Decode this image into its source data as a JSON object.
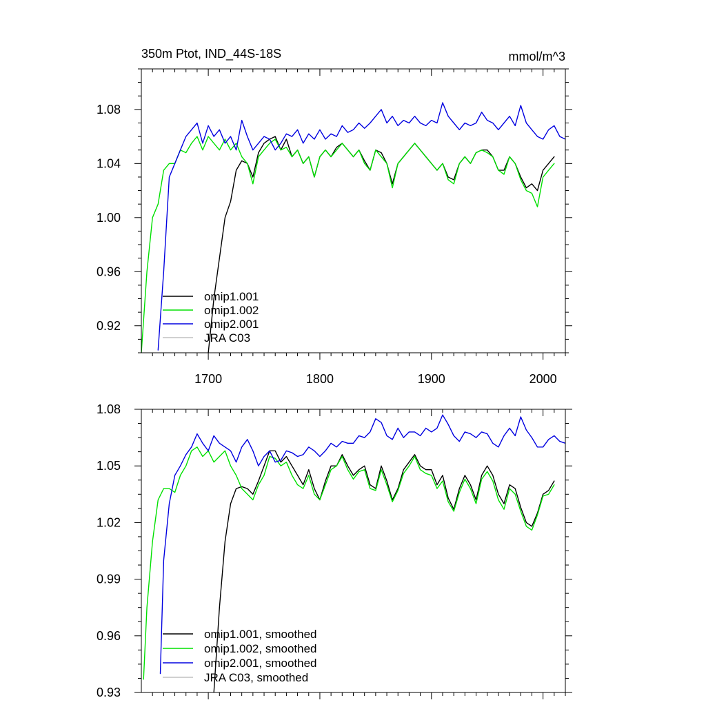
{
  "chart_data": [
    {
      "type": "line",
      "title": "350m Ptot, IND_44S-18S",
      "units": "mmol/m^3",
      "xlim": [
        1640,
        2020
      ],
      "ylim": [
        0.9,
        1.11
      ],
      "x_ticks": [
        1700,
        1800,
        1900,
        2000
      ],
      "x_tick_labels": [
        "1700",
        "1800",
        "1900",
        "2000"
      ],
      "y_ticks": [
        0.92,
        0.96,
        1.0,
        1.04,
        1.08
      ],
      "y_tick_labels": [
        "0.92",
        "0.96",
        "1.00",
        "1.04",
        "1.08"
      ],
      "grid": false,
      "legend_position": "bottom-left",
      "series": [
        {
          "name": "omip1.001",
          "color": "#000000",
          "x": [
            1700,
            1705,
            1710,
            1715,
            1720,
            1725,
            1730,
            1735,
            1740,
            1745,
            1750,
            1755,
            1760,
            1765,
            1770,
            1775,
            1780,
            1785,
            1790,
            1795,
            1800,
            1805,
            1810,
            1815,
            1820,
            1825,
            1830,
            1835,
            1840,
            1845,
            1850,
            1855,
            1860,
            1865,
            1870,
            1875,
            1880,
            1885,
            1890,
            1895,
            1900,
            1905,
            1910,
            1915,
            1920,
            1925,
            1930,
            1935,
            1940,
            1945,
            1950,
            1955,
            1960,
            1965,
            1970,
            1975,
            1980,
            1985,
            1990,
            1995,
            2000,
            2005,
            2010
          ],
          "y": [
            0.9,
            0.94,
            0.97,
            1.0,
            1.012,
            1.035,
            1.042,
            1.04,
            1.03,
            1.048,
            1.055,
            1.058,
            1.06,
            1.05,
            1.058,
            1.045,
            1.05,
            1.04,
            1.045,
            1.03,
            1.045,
            1.05,
            1.045,
            1.052,
            1.055,
            1.05,
            1.045,
            1.05,
            1.042,
            1.035,
            1.05,
            1.048,
            1.04,
            1.025,
            1.04,
            1.045,
            1.05,
            1.055,
            1.05,
            1.045,
            1.04,
            1.035,
            1.04,
            1.03,
            1.028,
            1.04,
            1.045,
            1.04,
            1.048,
            1.05,
            1.05,
            1.045,
            1.035,
            1.035,
            1.045,
            1.04,
            1.03,
            1.022,
            1.025,
            1.02,
            1.035,
            1.04,
            1.045
          ]
        },
        {
          "name": "omip1.002",
          "color": "#00e000",
          "x": [
            1640,
            1645,
            1650,
            1655,
            1660,
            1665,
            1670,
            1675,
            1680,
            1685,
            1690,
            1695,
            1700,
            1705,
            1710,
            1715,
            1720,
            1725,
            1730,
            1735,
            1740,
            1745,
            1750,
            1755,
            1760,
            1765,
            1770,
            1775,
            1780,
            1785,
            1790,
            1795,
            1800,
            1805,
            1810,
            1815,
            1820,
            1825,
            1830,
            1835,
            1840,
            1845,
            1850,
            1855,
            1860,
            1865,
            1870,
            1875,
            1880,
            1885,
            1890,
            1895,
            1900,
            1905,
            1910,
            1915,
            1920,
            1925,
            1930,
            1935,
            1940,
            1945,
            1950,
            1955,
            1960,
            1965,
            1970,
            1975,
            1980,
            1985,
            1990,
            1995,
            2000,
            2005,
            2010
          ],
          "y": [
            0.9,
            0.96,
            1.0,
            1.01,
            1.035,
            1.04,
            1.04,
            1.05,
            1.048,
            1.055,
            1.06,
            1.05,
            1.06,
            1.055,
            1.05,
            1.058,
            1.05,
            1.055,
            1.045,
            1.04,
            1.025,
            1.045,
            1.05,
            1.055,
            1.058,
            1.05,
            1.052,
            1.045,
            1.05,
            1.04,
            1.045,
            1.03,
            1.045,
            1.05,
            1.045,
            1.05,
            1.055,
            1.05,
            1.045,
            1.05,
            1.04,
            1.035,
            1.05,
            1.045,
            1.04,
            1.022,
            1.04,
            1.045,
            1.05,
            1.055,
            1.05,
            1.045,
            1.04,
            1.035,
            1.04,
            1.028,
            1.025,
            1.04,
            1.045,
            1.04,
            1.048,
            1.05,
            1.048,
            1.045,
            1.035,
            1.032,
            1.045,
            1.04,
            1.028,
            1.02,
            1.018,
            1.008,
            1.03,
            1.035,
            1.04
          ]
        },
        {
          "name": "omip2.001",
          "color": "#0000e0",
          "x": [
            1655,
            1660,
            1665,
            1670,
            1675,
            1680,
            1685,
            1690,
            1695,
            1700,
            1705,
            1710,
            1715,
            1720,
            1725,
            1730,
            1735,
            1740,
            1745,
            1750,
            1755,
            1760,
            1765,
            1770,
            1775,
            1780,
            1785,
            1790,
            1795,
            1800,
            1805,
            1810,
            1815,
            1820,
            1825,
            1830,
            1835,
            1840,
            1845,
            1850,
            1855,
            1860,
            1865,
            1870,
            1875,
            1880,
            1885,
            1890,
            1895,
            1900,
            1905,
            1910,
            1915,
            1920,
            1925,
            1930,
            1935,
            1940,
            1945,
            1950,
            1955,
            1960,
            1965,
            1970,
            1975,
            1980,
            1985,
            1990,
            1995,
            2000,
            2005,
            2010,
            2015,
            2020
          ],
          "y": [
            0.902,
            0.96,
            1.03,
            1.04,
            1.05,
            1.06,
            1.065,
            1.07,
            1.055,
            1.068,
            1.06,
            1.065,
            1.055,
            1.06,
            1.05,
            1.072,
            1.06,
            1.05,
            1.055,
            1.06,
            1.058,
            1.05,
            1.055,
            1.062,
            1.06,
            1.065,
            1.055,
            1.062,
            1.058,
            1.065,
            1.058,
            1.062,
            1.06,
            1.068,
            1.063,
            1.065,
            1.07,
            1.066,
            1.07,
            1.075,
            1.08,
            1.07,
            1.075,
            1.068,
            1.072,
            1.07,
            1.075,
            1.07,
            1.068,
            1.072,
            1.07,
            1.085,
            1.075,
            1.07,
            1.065,
            1.07,
            1.068,
            1.07,
            1.078,
            1.072,
            1.07,
            1.065,
            1.07,
            1.075,
            1.068,
            1.083,
            1.07,
            1.065,
            1.06,
            1.058,
            1.065,
            1.068,
            1.06,
            1.058
          ]
        },
        {
          "name": "JRA C03",
          "color": "#c0c0c0",
          "x": [],
          "y": []
        }
      ]
    },
    {
      "type": "line",
      "title": "",
      "units": "",
      "xlim": [
        1640,
        2020
      ],
      "ylim": [
        0.93,
        1.08
      ],
      "x_ticks": [
        1700,
        1800,
        1900,
        2000
      ],
      "x_tick_labels": [],
      "y_ticks": [
        0.93,
        0.96,
        0.99,
        1.02,
        1.05,
        1.08
      ],
      "y_tick_labels": [
        "0.93",
        "0.96",
        "0.99",
        "1.02",
        "1.05",
        "1.08"
      ],
      "grid": false,
      "legend_position": "bottom-left",
      "series": [
        {
          "name": "omip1.001, smoothed",
          "color": "#000000",
          "x": [
            1705,
            1710,
            1715,
            1720,
            1725,
            1730,
            1735,
            1740,
            1745,
            1750,
            1755,
            1760,
            1765,
            1770,
            1775,
            1780,
            1785,
            1790,
            1795,
            1800,
            1805,
            1810,
            1815,
            1820,
            1825,
            1830,
            1835,
            1840,
            1845,
            1850,
            1855,
            1860,
            1865,
            1870,
            1875,
            1880,
            1885,
            1890,
            1895,
            1900,
            1905,
            1910,
            1915,
            1920,
            1925,
            1930,
            1935,
            1940,
            1945,
            1950,
            1955,
            1960,
            1965,
            1970,
            1975,
            1980,
            1985,
            1990,
            1995,
            2000,
            2005,
            2010
          ],
          "y": [
            0.93,
            0.975,
            1.01,
            1.03,
            1.038,
            1.039,
            1.038,
            1.035,
            1.042,
            1.05,
            1.058,
            1.058,
            1.052,
            1.055,
            1.05,
            1.045,
            1.04,
            1.048,
            1.038,
            1.032,
            1.042,
            1.05,
            1.05,
            1.056,
            1.05,
            1.045,
            1.048,
            1.05,
            1.04,
            1.038,
            1.05,
            1.042,
            1.032,
            1.038,
            1.048,
            1.052,
            1.056,
            1.05,
            1.048,
            1.048,
            1.04,
            1.045,
            1.033,
            1.027,
            1.038,
            1.045,
            1.04,
            1.032,
            1.045,
            1.05,
            1.045,
            1.035,
            1.03,
            1.04,
            1.038,
            1.028,
            1.02,
            1.018,
            1.025,
            1.035,
            1.037,
            1.042
          ]
        },
        {
          "name": "omip1.002, smoothed",
          "color": "#00e000",
          "x": [
            1642,
            1645,
            1650,
            1655,
            1660,
            1665,
            1670,
            1675,
            1680,
            1685,
            1690,
            1695,
            1700,
            1705,
            1710,
            1715,
            1720,
            1725,
            1730,
            1735,
            1740,
            1745,
            1750,
            1755,
            1760,
            1765,
            1770,
            1775,
            1780,
            1785,
            1790,
            1795,
            1800,
            1805,
            1810,
            1815,
            1820,
            1825,
            1830,
            1835,
            1840,
            1845,
            1850,
            1855,
            1860,
            1865,
            1870,
            1875,
            1880,
            1885,
            1890,
            1895,
            1900,
            1905,
            1910,
            1915,
            1920,
            1925,
            1930,
            1935,
            1940,
            1945,
            1950,
            1955,
            1960,
            1965,
            1970,
            1975,
            1980,
            1985,
            1990,
            1995,
            2000,
            2005,
            2010
          ],
          "y": [
            0.937,
            0.975,
            1.01,
            1.032,
            1.038,
            1.038,
            1.036,
            1.045,
            1.05,
            1.058,
            1.06,
            1.055,
            1.058,
            1.052,
            1.055,
            1.058,
            1.05,
            1.045,
            1.038,
            1.035,
            1.032,
            1.04,
            1.045,
            1.055,
            1.054,
            1.05,
            1.052,
            1.045,
            1.04,
            1.038,
            1.045,
            1.035,
            1.032,
            1.04,
            1.048,
            1.05,
            1.055,
            1.048,
            1.043,
            1.047,
            1.048,
            1.038,
            1.037,
            1.048,
            1.04,
            1.031,
            1.037,
            1.046,
            1.05,
            1.055,
            1.048,
            1.046,
            1.045,
            1.038,
            1.042,
            1.031,
            1.026,
            1.036,
            1.043,
            1.038,
            1.03,
            1.043,
            1.047,
            1.042,
            1.032,
            1.027,
            1.038,
            1.035,
            1.026,
            1.018,
            1.016,
            1.024,
            1.034,
            1.035,
            1.04
          ]
        },
        {
          "name": "omip2.001, smoothed",
          "color": "#0000e0",
          "x": [
            1657,
            1660,
            1665,
            1670,
            1675,
            1680,
            1685,
            1690,
            1695,
            1700,
            1705,
            1710,
            1715,
            1720,
            1725,
            1730,
            1735,
            1740,
            1745,
            1750,
            1755,
            1760,
            1765,
            1770,
            1775,
            1780,
            1785,
            1790,
            1795,
            1800,
            1805,
            1810,
            1815,
            1820,
            1825,
            1830,
            1835,
            1840,
            1845,
            1850,
            1855,
            1860,
            1865,
            1870,
            1875,
            1880,
            1885,
            1890,
            1895,
            1900,
            1905,
            1910,
            1915,
            1920,
            1925,
            1930,
            1935,
            1940,
            1945,
            1950,
            1955,
            1960,
            1965,
            1970,
            1975,
            1980,
            1985,
            1990,
            1995,
            2000,
            2005,
            2010,
            2015,
            2020
          ],
          "y": [
            0.94,
            1.0,
            1.03,
            1.045,
            1.05,
            1.056,
            1.06,
            1.067,
            1.062,
            1.058,
            1.066,
            1.062,
            1.06,
            1.058,
            1.052,
            1.06,
            1.064,
            1.058,
            1.05,
            1.055,
            1.058,
            1.052,
            1.053,
            1.058,
            1.057,
            1.055,
            1.056,
            1.06,
            1.058,
            1.055,
            1.058,
            1.062,
            1.06,
            1.063,
            1.062,
            1.062,
            1.066,
            1.065,
            1.068,
            1.075,
            1.073,
            1.066,
            1.064,
            1.07,
            1.065,
            1.068,
            1.068,
            1.066,
            1.07,
            1.068,
            1.07,
            1.077,
            1.072,
            1.066,
            1.063,
            1.068,
            1.067,
            1.065,
            1.068,
            1.067,
            1.062,
            1.06,
            1.066,
            1.07,
            1.066,
            1.076,
            1.069,
            1.065,
            1.06,
            1.06,
            1.064,
            1.066,
            1.063,
            1.062
          ]
        },
        {
          "name": "JRA C03, smoothed",
          "color": "#c0c0c0",
          "x": [],
          "y": []
        }
      ]
    }
  ]
}
